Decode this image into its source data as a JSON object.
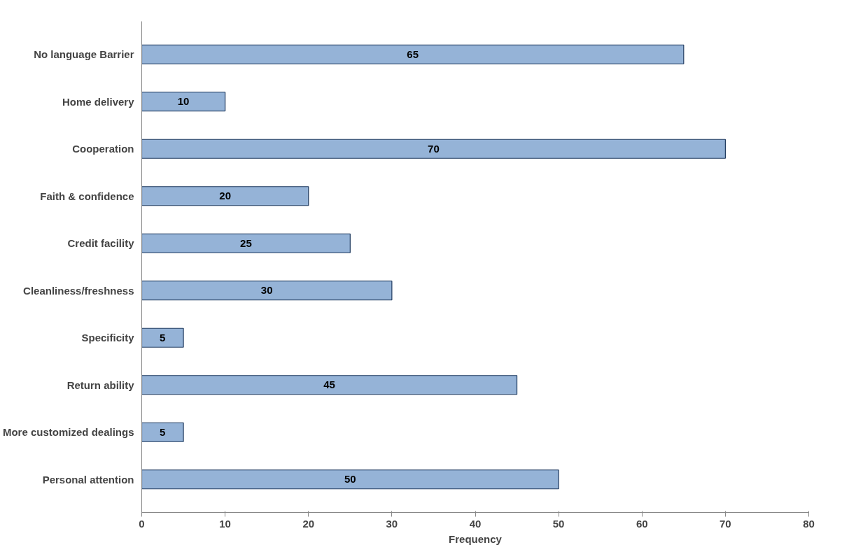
{
  "chart_data": {
    "type": "bar",
    "orientation": "horizontal",
    "xlabel": "Frequency",
    "categories": [
      "No language Barrier",
      "Home delivery",
      "Cooperation",
      "Faith & confidence",
      "Credit facility",
      "Cleanliness/freshness",
      "Specificity",
      "Return ability",
      "More customized dealings",
      "Personal attention"
    ],
    "values": [
      65,
      10,
      70,
      20,
      25,
      30,
      5,
      45,
      5,
      50
    ],
    "color": "#95b3d7",
    "xlim": [
      0,
      80
    ],
    "xticks": [
      0,
      10,
      20,
      30,
      40,
      50,
      60,
      70,
      80
    ],
    "data_labels": true,
    "grid": false
  }
}
